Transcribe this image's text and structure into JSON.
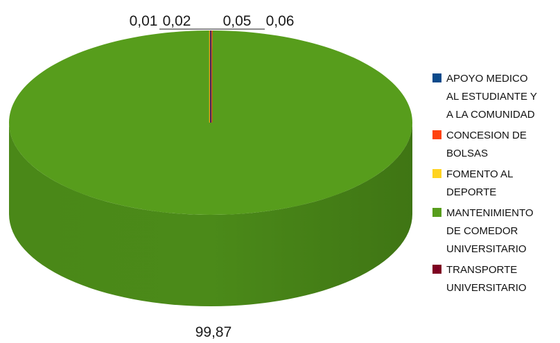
{
  "chart_data": {
    "type": "pie",
    "title": "",
    "three_d": true,
    "legend_position": "right",
    "series": [
      {
        "name": "APOYO MEDICO AL ESTUDIANTE Y A LA COMUNIDAD",
        "legend_lines": [
          "APOYO MEDICO",
          "AL ESTUDIANTE Y",
          "A LA COMUNIDAD"
        ],
        "value": 0.05,
        "label": "0,05",
        "color": "#0b4a8b"
      },
      {
        "name": "CONCESION DE BOLSAS",
        "legend_lines": [
          "CONCESION DE",
          "BOLSAS"
        ],
        "value": 0.06,
        "label": "0,06",
        "color": "#ff420e"
      },
      {
        "name": "FOMENTO AL DEPORTE",
        "legend_lines": [
          "FOMENTO AL",
          "DEPORTE"
        ],
        "value": 0.01,
        "label": "0,01",
        "color": "#ffd320"
      },
      {
        "name": "MANTENIMIENTO DE COMEDOR UNIVERSITARIO",
        "legend_lines": [
          "MANTENIMIENTO",
          "DE COMEDOR",
          "UNIVERSITARIO"
        ],
        "value": 99.87,
        "label": "99,87",
        "color": "#579d1c"
      },
      {
        "name": "TRANSPORTE UNIVERSITARIO",
        "legend_lines": [
          "TRANSPORTE",
          "UNIVERSITARIO"
        ],
        "value": 0.02,
        "label": "0,02",
        "color": "#7e0021"
      }
    ]
  }
}
